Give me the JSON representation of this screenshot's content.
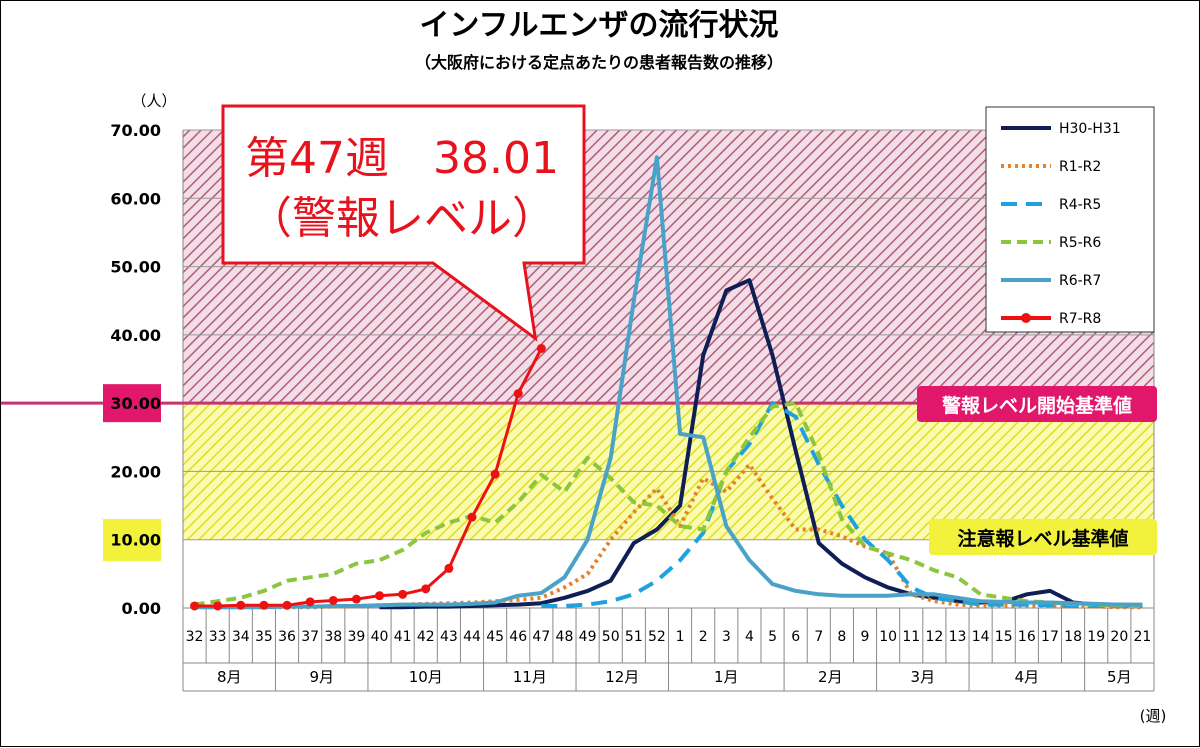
{
  "title": "インフルエンザの流行状況",
  "subtitle": "（大阪府における定点あたりの患者報告数の推移）",
  "y_unit": "（人）",
  "x_unit": "(週)",
  "callout": {
    "line1": "第47週　38.01",
    "line2": "（警報レベル）"
  },
  "thresholds": {
    "warning_label": "警報レベル開始基準値",
    "warning_value": 30,
    "caution_label": "注意報レベル基準値",
    "caution_value": 10
  },
  "colors": {
    "warning_zone": "#b05d7a",
    "caution_zone": "#e6e62b",
    "warning_line": "#c8326e",
    "warning_badge": "#e0176a",
    "caution_badge": "#f2f23c"
  },
  "chart_data": {
    "type": "line",
    "title": "インフルエンザの流行状況",
    "ylabel": "（人）",
    "xlabel": "(週)",
    "ylim": [
      0,
      70
    ],
    "yticks": [
      "0.00",
      "10.00",
      "20.00",
      "30.00",
      "40.00",
      "50.00",
      "60.00",
      "70.00"
    ],
    "categories": [
      "32",
      "33",
      "34",
      "35",
      "36",
      "37",
      "38",
      "39",
      "40",
      "41",
      "42",
      "43",
      "44",
      "45",
      "46",
      "47",
      "48",
      "49",
      "50",
      "51",
      "52",
      "1",
      "2",
      "3",
      "4",
      "5",
      "6",
      "7",
      "8",
      "9",
      "10",
      "11",
      "12",
      "13",
      "14",
      "15",
      "16",
      "17",
      "18",
      "19",
      "20",
      "21"
    ],
    "months": [
      {
        "label": "8月",
        "start": 0,
        "end": 4
      },
      {
        "label": "9月",
        "start": 4,
        "end": 8
      },
      {
        "label": "10月",
        "start": 8,
        "end": 13
      },
      {
        "label": "11月",
        "start": 13,
        "end": 17
      },
      {
        "label": "12月",
        "start": 17,
        "end": 21
      },
      {
        "label": "1月",
        "start": 21,
        "end": 26
      },
      {
        "label": "2月",
        "start": 26,
        "end": 30
      },
      {
        "label": "3月",
        "start": 30,
        "end": 34
      },
      {
        "label": "4月",
        "start": 34,
        "end": 39
      },
      {
        "label": "5月",
        "start": 39,
        "end": 42
      }
    ],
    "series": [
      {
        "name": "H30-H31",
        "color": "#0f1f55",
        "dash": "",
        "markers": false,
        "values": [
          null,
          null,
          null,
          null,
          null,
          null,
          null,
          null,
          0.1,
          0.1,
          0.2,
          0.2,
          0.3,
          0.4,
          0.5,
          0.7,
          1.5,
          2.5,
          4,
          9.5,
          11.5,
          15,
          37,
          46.5,
          48,
          37,
          23,
          9.5,
          6.5,
          4.5,
          3,
          2,
          1.5,
          1,
          0.8,
          0.9,
          2,
          2.5,
          0.8,
          0.5,
          0.5,
          0.4
        ]
      },
      {
        "name": "R1-R2",
        "color": "#e3822b",
        "dash": "3,4",
        "markers": false,
        "values": [
          0.1,
          0.1,
          0.1,
          0.1,
          0.1,
          0.1,
          0.2,
          0.3,
          0.4,
          0.5,
          0.6,
          0.7,
          0.8,
          1,
          1.2,
          1.5,
          3,
          5,
          10,
          14,
          17.5,
          12,
          19,
          17,
          21,
          16,
          11.5,
          11.5,
          10.5,
          9,
          8,
          2,
          1,
          0.5,
          0.3,
          0.3,
          0.3,
          0.3,
          0.2,
          0.2,
          0.1,
          0.1
        ]
      },
      {
        "name": "R4-R5",
        "color": "#1fa1e0",
        "dash": "16,9",
        "markers": false,
        "values": [
          null,
          null,
          null,
          null,
          null,
          null,
          null,
          null,
          null,
          null,
          null,
          null,
          null,
          null,
          null,
          0.3,
          0.3,
          0.5,
          1,
          2,
          4,
          7,
          11,
          20,
          24,
          30,
          28,
          21,
          15,
          10,
          7,
          3,
          1.5,
          1,
          0.5,
          0.5,
          0.5,
          0.4,
          0.3,
          0.3,
          0.3,
          0.3
        ]
      },
      {
        "name": "R5-R6",
        "color": "#8cc63f",
        "dash": "10,6",
        "markers": false,
        "values": [
          0.5,
          1,
          1.5,
          2.5,
          4,
          4.5,
          5,
          6.5,
          7,
          8.5,
          11,
          12.5,
          13.5,
          12.5,
          15.5,
          19.5,
          17,
          22,
          19,
          15.5,
          15,
          12,
          11.5,
          20,
          25,
          29.5,
          30,
          22.5,
          13,
          9,
          8,
          7,
          5.5,
          4.5,
          2,
          1.5,
          1,
          0.8,
          0.6,
          0.5,
          0.4,
          0.3
        ]
      },
      {
        "name": "R6-R7",
        "color": "#4aa2c8",
        "dash": "",
        "markers": false,
        "values": [
          0.1,
          0.1,
          0.1,
          0.1,
          0.2,
          0.2,
          0.3,
          0.3,
          0.4,
          0.5,
          0.5,
          0.5,
          0.6,
          0.8,
          1.8,
          2.2,
          4.5,
          10,
          22,
          45,
          66,
          25.5,
          25,
          12,
          7,
          3.5,
          2.5,
          2,
          1.8,
          1.8,
          1.8,
          2,
          2,
          1.5,
          1,
          0.9,
          0.8,
          0.8,
          0.7,
          0.6,
          0.5,
          0.5
        ]
      },
      {
        "name": "R7-R8",
        "color": "#ee1111",
        "dash": "",
        "markers": true,
        "values": [
          0.3,
          0.3,
          0.4,
          0.4,
          0.4,
          0.9,
          1.1,
          1.3,
          1.8,
          2,
          2.8,
          5.8,
          13.3,
          19.6,
          31.4,
          38.01,
          null,
          null,
          null,
          null,
          null,
          null,
          null,
          null,
          null,
          null,
          null,
          null,
          null,
          null,
          null,
          null,
          null,
          null,
          null,
          null,
          null,
          null,
          null,
          null,
          null,
          null
        ]
      }
    ]
  }
}
